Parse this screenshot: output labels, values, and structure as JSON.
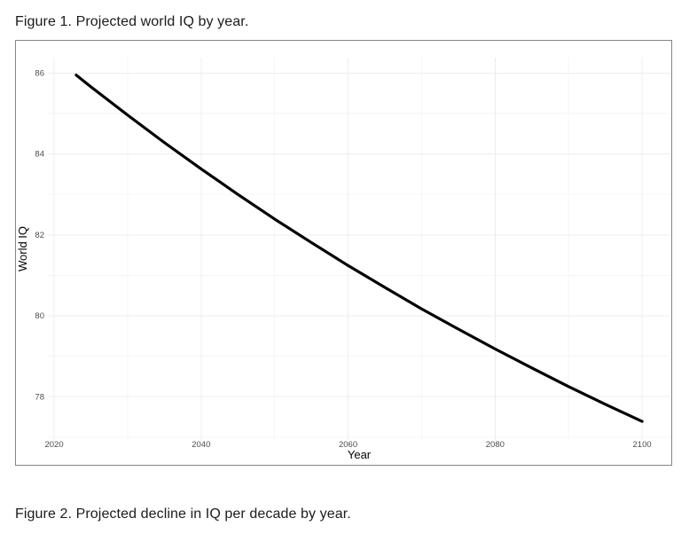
{
  "page": {
    "figure1_caption": "Figure 1. Projected world IQ by year.",
    "figure2_caption": "Figure 2. Projected decline in IQ per decade by year."
  },
  "chart_data": {
    "type": "line",
    "title": "",
    "xlabel": "Year",
    "ylabel": "World IQ",
    "x": [
      2023,
      2025,
      2030,
      2035,
      2040,
      2045,
      2050,
      2055,
      2060,
      2065,
      2070,
      2075,
      2080,
      2085,
      2090,
      2095,
      2100
    ],
    "y": [
      85.95,
      85.66,
      84.96,
      84.28,
      83.63,
      83.0,
      82.39,
      81.81,
      81.24,
      80.7,
      80.17,
      79.67,
      79.18,
      78.71,
      78.25,
      77.81,
      77.39
    ],
    "series_name": "Projected world IQ",
    "xticks": [
      2020,
      2040,
      2060,
      2080,
      2100
    ],
    "yticks": [
      78,
      80,
      82,
      84,
      86
    ],
    "xticks_minor": [
      2030,
      2050,
      2070,
      2090
    ],
    "yticks_minor": [
      77,
      79,
      81,
      83,
      85
    ],
    "xlim": [
      2019.15,
      2103.85
    ],
    "ylim": [
      76.93,
      86.38
    ],
    "grid": "major+minor",
    "legend": "none",
    "line_color": "#000000",
    "line_width": 3.2,
    "colors": {
      "grid_major": "#efecf1",
      "grid_minor": "#f6f4f8",
      "tick_label": "#4d4d4d",
      "axis_title": "#000000",
      "panel_border": "#858585",
      "background": "#ffffff"
    }
  }
}
